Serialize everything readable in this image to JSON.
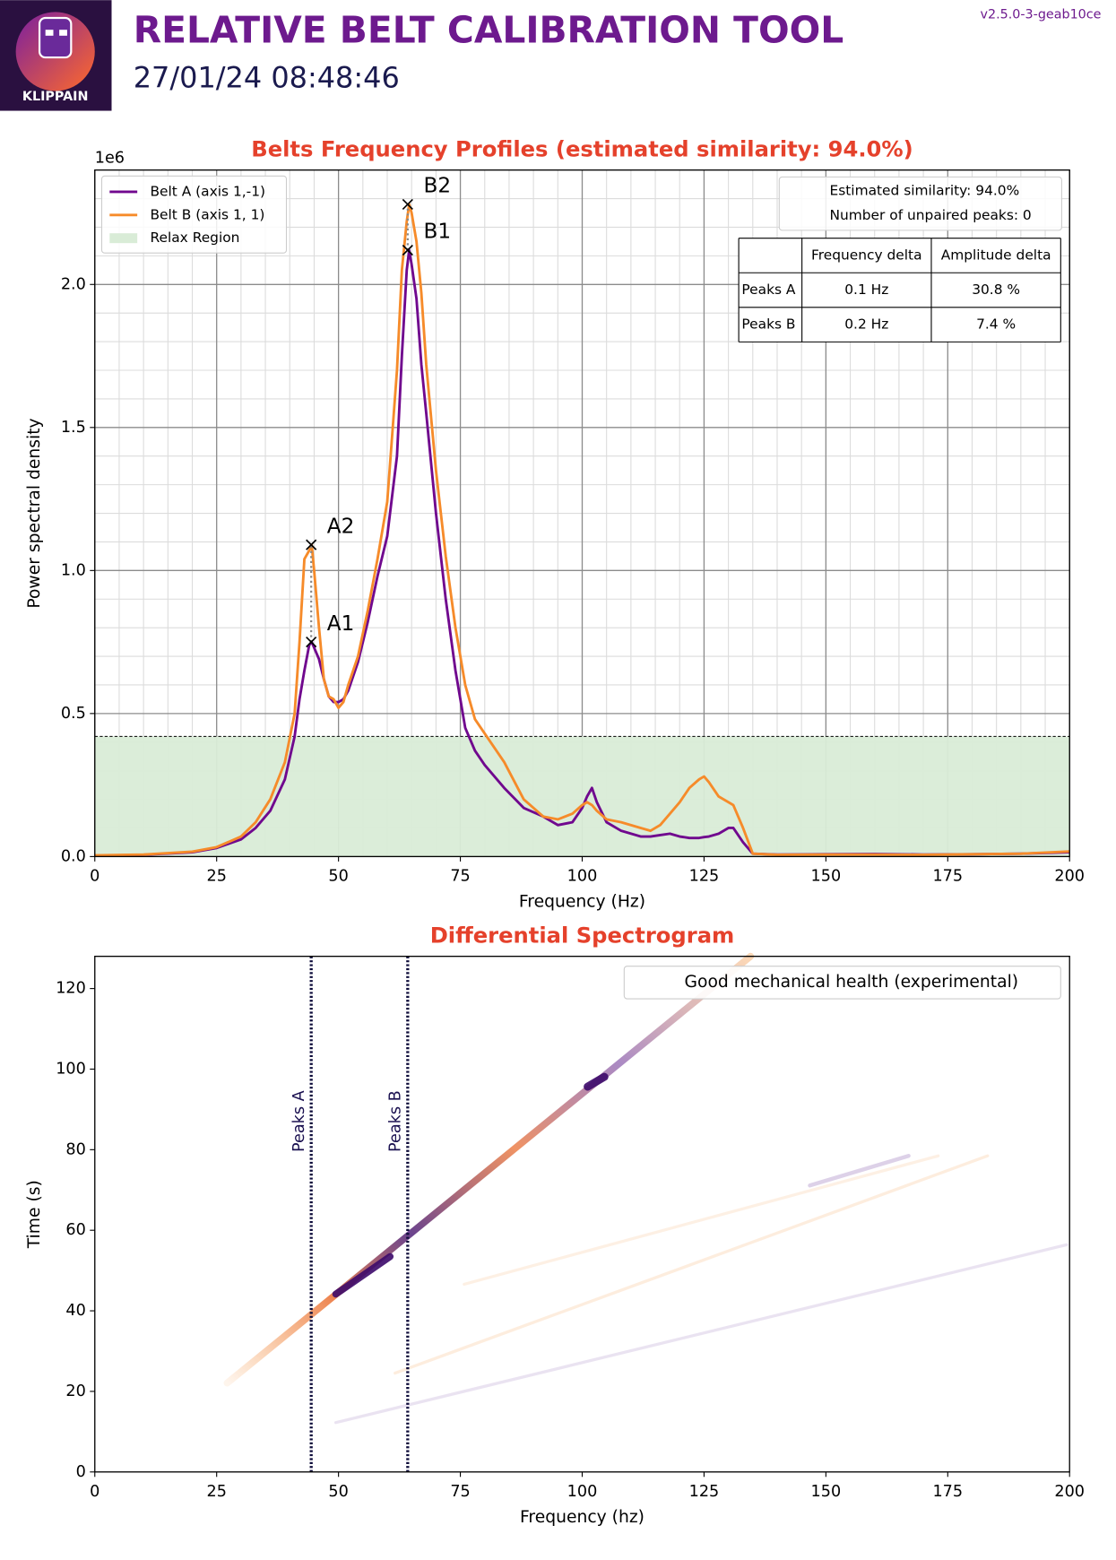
{
  "header": {
    "logo_text": "KLIPPAIN",
    "title": "RELATIVE BELT CALIBRATION TOOL",
    "datetime": "27/01/24 08:48:46",
    "version": "v2.5.0-3-geab10ce"
  },
  "chart_data": [
    {
      "type": "line",
      "title": "Belts Frequency Profiles (estimated similarity: 94.0%)",
      "x_label": "Frequency (Hz)",
      "y_label": "Power spectral density",
      "y_offset_text": "1e6",
      "x": [
        0,
        10,
        20,
        25,
        30,
        33,
        36,
        39,
        41,
        42,
        43,
        44,
        44.5,
        45,
        46,
        47,
        48,
        49,
        50,
        51,
        52,
        54,
        56,
        58,
        60,
        62,
        63,
        64,
        64.5,
        65,
        66,
        67,
        68,
        70,
        72,
        74,
        76,
        78,
        80,
        84,
        88,
        92,
        95,
        98,
        100,
        101,
        102,
        103,
        105,
        108,
        112,
        114,
        116,
        118,
        120,
        122,
        124,
        125,
        126,
        128,
        130,
        131,
        133,
        135,
        140,
        150,
        160,
        170,
        180,
        190,
        200
      ],
      "series": [
        {
          "name": "Belt A (axis 1,-1)",
          "color": "#70088e",
          "values": [
            0.003,
            0.006,
            0.015,
            0.03,
            0.06,
            0.1,
            0.16,
            0.27,
            0.42,
            0.55,
            0.65,
            0.74,
            0.75,
            0.73,
            0.69,
            0.62,
            0.56,
            0.54,
            0.54,
            0.55,
            0.58,
            0.68,
            0.82,
            0.98,
            1.12,
            1.4,
            1.75,
            2.05,
            2.12,
            2.07,
            1.95,
            1.72,
            1.55,
            1.2,
            0.9,
            0.65,
            0.45,
            0.37,
            0.32,
            0.24,
            0.17,
            0.14,
            0.11,
            0.12,
            0.17,
            0.21,
            0.24,
            0.19,
            0.12,
            0.09,
            0.07,
            0.07,
            0.075,
            0.08,
            0.07,
            0.065,
            0.065,
            0.068,
            0.07,
            0.08,
            0.1,
            0.1,
            0.05,
            0.01,
            0.007,
            0.008,
            0.009,
            0.007,
            0.008,
            0.01,
            0.015
          ]
        },
        {
          "name": "Belt B (axis 1, 1)",
          "color": "#f68b2a",
          "values": [
            0.004,
            0.007,
            0.017,
            0.033,
            0.07,
            0.12,
            0.2,
            0.33,
            0.5,
            0.75,
            1.04,
            1.07,
            1.09,
            1.0,
            0.8,
            0.62,
            0.56,
            0.55,
            0.52,
            0.54,
            0.6,
            0.7,
            0.86,
            1.04,
            1.24,
            1.7,
            2.05,
            2.22,
            2.28,
            2.25,
            2.15,
            1.97,
            1.72,
            1.35,
            1.05,
            0.8,
            0.6,
            0.48,
            0.43,
            0.33,
            0.2,
            0.14,
            0.13,
            0.15,
            0.18,
            0.19,
            0.18,
            0.16,
            0.13,
            0.12,
            0.1,
            0.09,
            0.11,
            0.15,
            0.19,
            0.24,
            0.27,
            0.28,
            0.26,
            0.21,
            0.19,
            0.18,
            0.1,
            0.01,
            0.006,
            0.007,
            0.007,
            0.006,
            0.008,
            0.01,
            0.018
          ]
        }
      ],
      "relax_region": {
        "name": "Relax Region",
        "color": "#d9ecd7",
        "value": 0.42
      },
      "annotations": [
        {
          "label": "A1",
          "x": 44.4,
          "y": 0.75
        },
        {
          "label": "A2",
          "x": 44.4,
          "y": 1.09
        },
        {
          "label": "B1",
          "x": 64.2,
          "y": 2.12
        },
        {
          "label": "B2",
          "x": 64.2,
          "y": 2.28
        }
      ],
      "info_box": [
        "Estimated similarity: 94.0%",
        "Number of unpaired peaks: 0"
      ],
      "table": {
        "columns": [
          "Frequency delta",
          "Amplitude delta"
        ],
        "rows": [
          {
            "label": "Peaks A",
            "cells": [
              "0.1 Hz",
              "30.8 %"
            ]
          },
          {
            "label": "Peaks B",
            "cells": [
              "0.2 Hz",
              "7.4 %"
            ]
          }
        ]
      },
      "xlim": [
        0,
        200
      ],
      "xticks": [
        0,
        25,
        50,
        75,
        100,
        125,
        150,
        175,
        200
      ],
      "ylim": [
        0,
        2.4
      ],
      "yticks": [
        {
          "value": 0,
          "label": "0.0"
        },
        0.5,
        {
          "value": 1,
          "label": "1.0"
        },
        1.5,
        {
          "value": 2,
          "label": "2.0"
        }
      ],
      "grid": true,
      "minor_grid": true,
      "legend": "upper left"
    },
    {
      "type": "spectrogram",
      "title": "Differential Spectrogram",
      "x_label": "Frequency (hz)",
      "y_label": "Time (s)",
      "vlines": [
        {
          "label": "Peaks A",
          "x": 44.4
        },
        {
          "label": "Peaks B",
          "x": 64.2
        }
      ],
      "legend_text": "Good mechanical health (experimental)",
      "xlim": [
        0,
        200
      ],
      "xticks": [
        0,
        25,
        50,
        75,
        100,
        125,
        150,
        175,
        200
      ],
      "ylim": [
        0,
        128
      ],
      "yticks": [
        0,
        20,
        40,
        60,
        80,
        100,
        120
      ]
    }
  ]
}
